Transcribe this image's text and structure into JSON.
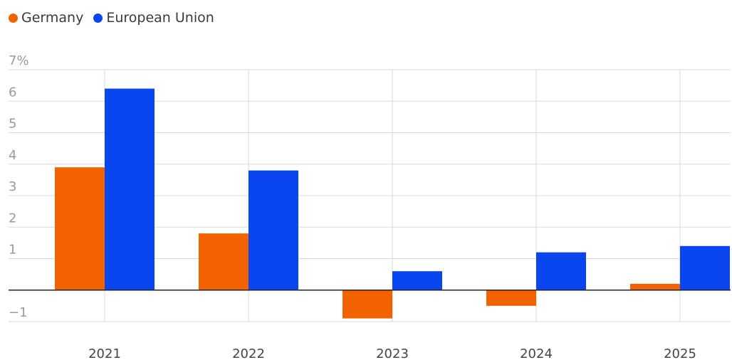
{
  "legend": [
    {
      "name": "Germany",
      "color": "#F26300"
    },
    {
      "name": "European Union",
      "color": "#0A46F0"
    }
  ],
  "chart_data": {
    "type": "bar",
    "categories": [
      "2021",
      "2022",
      "2023",
      "2024",
      "2025"
    ],
    "series": [
      {
        "name": "Germany",
        "color": "#F26300",
        "values": [
          3.9,
          1.8,
          -0.9,
          -0.5,
          0.2
        ]
      },
      {
        "name": "European Union",
        "color": "#0A46F0",
        "values": [
          6.4,
          3.8,
          0.6,
          1.2,
          1.4
        ]
      }
    ],
    "ylim": [
      -1,
      7
    ],
    "yticks": [
      -1,
      1,
      2,
      3,
      4,
      5,
      6,
      7
    ],
    "ytick_labels": [
      "−1",
      "1",
      "2",
      "3",
      "4",
      "5",
      "6",
      "7%"
    ],
    "grid": true,
    "legend_position": "top-left"
  }
}
